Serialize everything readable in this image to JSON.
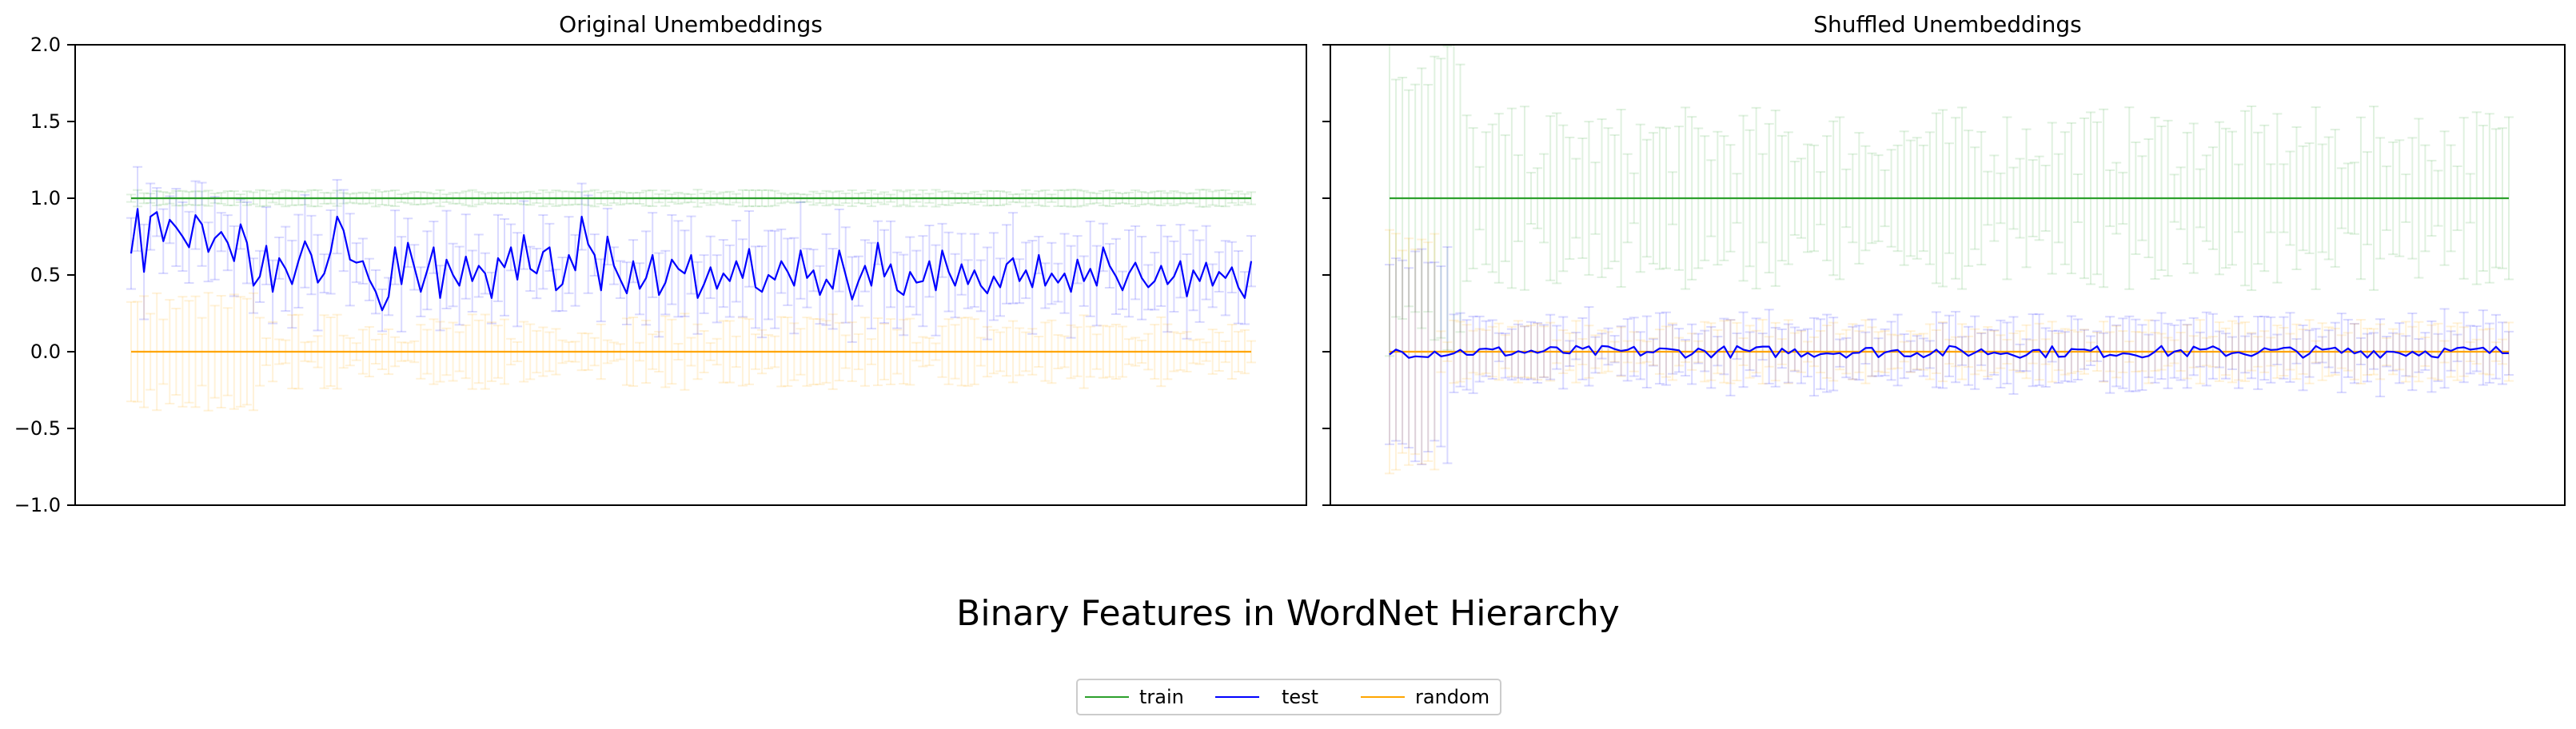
{
  "figure": {
    "suptitle": "Binary Features in WordNet Hierarchy"
  },
  "legend": {
    "placement": "bottom-center",
    "items": [
      {
        "label": "train",
        "color": "#2ca02c"
      },
      {
        "label": "test",
        "color": "#0000ff"
      },
      {
        "label": "random",
        "color": "#ffa500"
      }
    ]
  },
  "chart_data": [
    {
      "type": "line",
      "title": "Original Unembeddings",
      "xlabel": "",
      "ylabel": "",
      "ylim": [
        -1.0,
        2.0
      ],
      "yticks": [
        "−1.0",
        "−0.5",
        "0.0",
        "0.5",
        "1.0",
        "1.5",
        "2.0"
      ],
      "xticks": [],
      "grid": false,
      "errorbars": true,
      "errorbar_alpha": 0.15,
      "n_points": 175,
      "series": [
        {
          "name": "train",
          "color": "#2ca02c",
          "mean": 1.0,
          "err_approx": 0.04,
          "values_summary": "≈1.0 at every point"
        },
        {
          "name": "test",
          "color": "#0000ff",
          "values": [
            0.64,
            0.93,
            0.52,
            0.88,
            0.91,
            0.72,
            0.86,
            0.81,
            0.75,
            0.68,
            0.89,
            0.83,
            0.65,
            0.74,
            0.78,
            0.71,
            0.59,
            0.83,
            0.71,
            0.43,
            0.49,
            0.69,
            0.39,
            0.61,
            0.54,
            0.44,
            0.59,
            0.72,
            0.63,
            0.45,
            0.51,
            0.65,
            0.88,
            0.79,
            0.6,
            0.58,
            0.59,
            0.47,
            0.39,
            0.27,
            0.36,
            0.68,
            0.44,
            0.71,
            0.55,
            0.39,
            0.53,
            0.68,
            0.35,
            0.6,
            0.5,
            0.43,
            0.62,
            0.46,
            0.56,
            0.51,
            0.35,
            0.61,
            0.55,
            0.68,
            0.47,
            0.76,
            0.54,
            0.51,
            0.65,
            0.68,
            0.4,
            0.44,
            0.63,
            0.53,
            0.88,
            0.7,
            0.63,
            0.4,
            0.75,
            0.56,
            0.47,
            0.38,
            0.59,
            0.41,
            0.48,
            0.63,
            0.37,
            0.45,
            0.6,
            0.54,
            0.51,
            0.63,
            0.35,
            0.44,
            0.55,
            0.41,
            0.51,
            0.46,
            0.59,
            0.48,
            0.67,
            0.42,
            0.39,
            0.5,
            0.47,
            0.59,
            0.52,
            0.43,
            0.66,
            0.48,
            0.53,
            0.37,
            0.47,
            0.41,
            0.66,
            0.5,
            0.34,
            0.46,
            0.56,
            0.43,
            0.71,
            0.49,
            0.57,
            0.4,
            0.37,
            0.52,
            0.45,
            0.46,
            0.59,
            0.4,
            0.66,
            0.52,
            0.43,
            0.57,
            0.44,
            0.53,
            0.43,
            0.38,
            0.49,
            0.42,
            0.57,
            0.61,
            0.46,
            0.53,
            0.42,
            0.63,
            0.43,
            0.51,
            0.45,
            0.51,
            0.39,
            0.6,
            0.46,
            0.54,
            0.43,
            0.68,
            0.56,
            0.49,
            0.4,
            0.51,
            0.58,
            0.48,
            0.42,
            0.46,
            0.56,
            0.44,
            0.49,
            0.59,
            0.36,
            0.53,
            0.46,
            0.58,
            0.43,
            0.52,
            0.48,
            0.55,
            0.42,
            0.35,
            0.59
          ]
        },
        {
          "name": "random",
          "color": "#ffa500",
          "mean": 0.0,
          "err_approx": 0.1,
          "values_summary": "≈0.0 at every point"
        }
      ]
    },
    {
      "type": "line",
      "title": "Shuffled Unembeddings",
      "xlabel": "",
      "ylabel": "",
      "ylim": [
        -1.0,
        2.0
      ],
      "yticks": [],
      "xticks": [],
      "grid": false,
      "errorbars": true,
      "errorbar_alpha": 0.15,
      "n_points": 175,
      "series": [
        {
          "name": "train",
          "color": "#2ca02c",
          "mean": 1.0,
          "err_approx": 0.35,
          "values_summary": "≈1.0 at every point"
        },
        {
          "name": "test",
          "color": "#0000ff",
          "mean": 0.0,
          "err_approx": 0.15,
          "values_summary": "≈0.0 with ±0.04 fluctuation"
        },
        {
          "name": "random",
          "color": "#ffa500",
          "mean": 0.0,
          "err_approx": 0.1,
          "values_summary": "≈0.0 at every point"
        }
      ]
    }
  ]
}
